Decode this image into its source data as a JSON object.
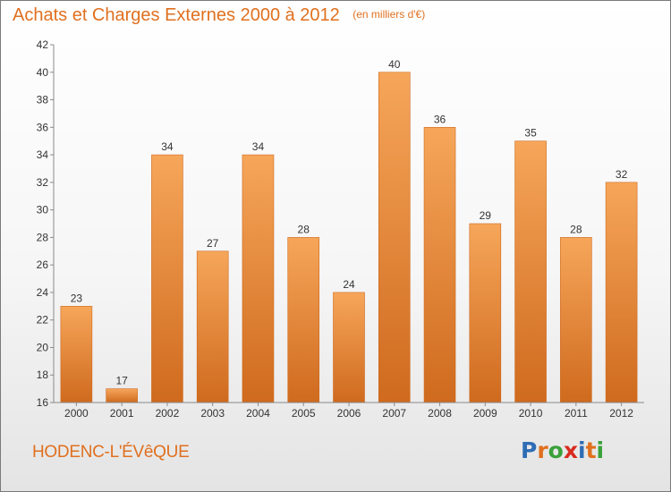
{
  "header": {
    "title": "Achats et Charges Externes 2000 à 2012",
    "unit_note": "(en milliers d'€)"
  },
  "commune": "HODENC-L'ÉVêQUE",
  "logo": {
    "text": "Proxiti",
    "letter_colors": [
      "#2e6db5",
      "#e0701f",
      "#3aa13a",
      "#d92b1f",
      "#2e6db5",
      "#e0701f",
      "#3aa13a"
    ]
  },
  "chart_data": {
    "type": "bar",
    "categories": [
      "2000",
      "2001",
      "2002",
      "2003",
      "2004",
      "2005",
      "2006",
      "2007",
      "2008",
      "2009",
      "2010",
      "2011",
      "2012"
    ],
    "values": [
      23,
      17,
      34,
      27,
      34,
      28,
      24,
      40,
      36,
      29,
      35,
      28,
      32
    ],
    "data_labels": [
      "23",
      "17",
      "34",
      "27",
      "34",
      "28",
      "24",
      "40",
      "36",
      "29",
      "35",
      "28",
      "32"
    ],
    "title": "Achats et Charges Externes 2000 à 2012",
    "ylim": [
      16,
      42
    ],
    "yticks": [
      16,
      18,
      20,
      22,
      24,
      26,
      28,
      30,
      32,
      34,
      36,
      38,
      40,
      42
    ],
    "grid": false,
    "legend": "none",
    "colors": {
      "bar_light": "#f6a65a",
      "bar_dark": "#cf6a1e",
      "axis": "#8a8a8a",
      "text": "#333333"
    }
  }
}
